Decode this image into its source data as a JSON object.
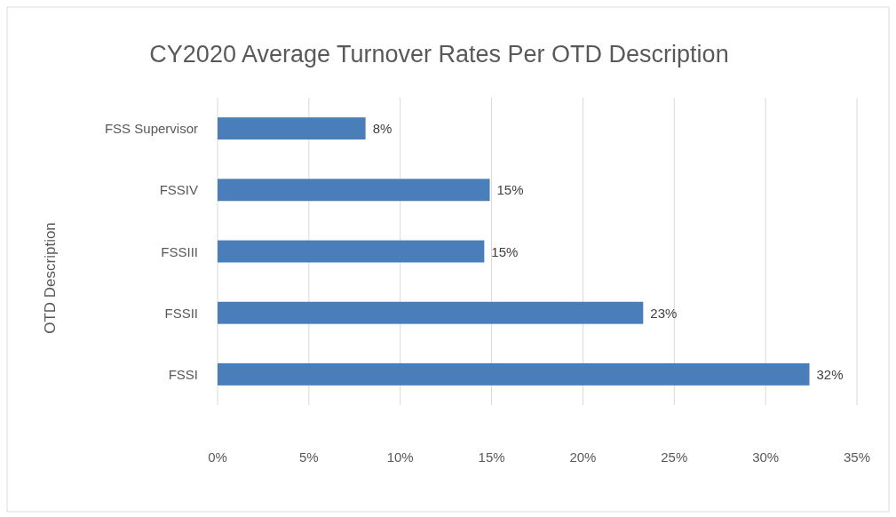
{
  "chart_data": {
    "type": "bar",
    "orientation": "horizontal",
    "title": "CY2020 Average Turnover Rates Per OTD Description",
    "ylabel": "OTD Description",
    "categories": [
      "FSS Supervisor",
      "FSSIV",
      "FSSIII",
      "FSSII",
      "FSSI"
    ],
    "values": [
      8.1,
      14.9,
      14.6,
      23.3,
      32.4
    ],
    "value_labels": [
      "8%",
      "15%",
      "15%",
      "23%",
      "32%"
    ],
    "color": "#4a7ebb",
    "xlim": [
      0,
      35
    ],
    "xticks": [
      {
        "value": 0,
        "label": "0%"
      },
      {
        "value": 5,
        "label": "5%"
      },
      {
        "value": 10,
        "label": "10%"
      },
      {
        "value": 15,
        "label": "15%"
      },
      {
        "value": 20,
        "label": "20%"
      },
      {
        "value": 25,
        "label": "25%"
      },
      {
        "value": 30,
        "label": "30%"
      },
      {
        "value": 35,
        "label": "35%"
      }
    ],
    "grid": "x"
  }
}
